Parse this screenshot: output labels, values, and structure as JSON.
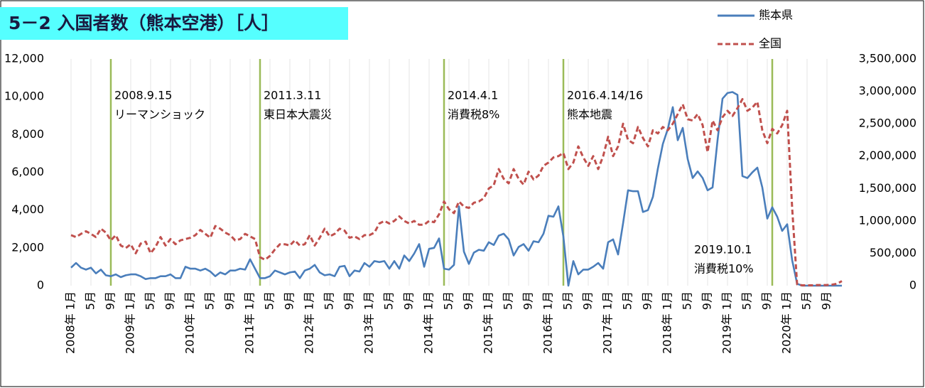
{
  "chart_data": {
    "type": "line",
    "title": "5－2 入国者数（熊本空港）［人］",
    "categories": [
      "2008年 1月",
      null,
      null,
      null,
      "5月",
      null,
      null,
      null,
      "9月",
      null,
      null,
      null,
      "2009年 1月",
      null,
      null,
      null,
      "5月",
      null,
      null,
      null,
      "9月",
      null,
      null,
      null,
      "2010年 1月",
      null,
      null,
      null,
      "5月",
      null,
      null,
      null,
      "9月",
      null,
      null,
      null,
      "2011年 1月",
      null,
      null,
      null,
      "5月",
      null,
      null,
      null,
      "9月",
      null,
      null,
      null,
      "2012年 1月",
      null,
      null,
      null,
      "5月",
      null,
      null,
      null,
      "9月",
      null,
      null,
      null,
      "2013年 1月",
      null,
      null,
      null,
      "5月",
      null,
      null,
      null,
      "9月",
      null,
      null,
      null,
      "2014年 1月",
      null,
      null,
      null,
      "5月",
      null,
      null,
      null,
      "9月",
      null,
      null,
      null,
      "2015年 1月",
      null,
      null,
      null,
      "5月",
      null,
      null,
      null,
      "9月",
      null,
      null,
      null,
      "2016年 1月",
      null,
      null,
      null,
      "5月",
      null,
      null,
      null,
      "9月",
      null,
      null,
      null,
      "2017年 1月",
      null,
      null,
      null,
      "5月",
      null,
      null,
      null,
      "9月",
      null,
      null,
      null,
      "2018年 1月",
      null,
      null,
      null,
      "5月",
      null,
      null,
      null,
      "9月",
      null,
      null,
      null,
      "2019年 1月",
      null,
      null,
      null,
      "5月",
      null,
      null,
      null,
      "9月",
      null,
      null,
      null,
      "2020年 1月",
      null,
      null,
      null,
      "5月",
      null,
      null,
      null,
      "9月",
      null,
      null,
      null
    ],
    "series": [
      {
        "name": "熊本県",
        "color": "#4a7ebb",
        "dashed": false,
        "values": [
          950,
          1200,
          950,
          850,
          950,
          650,
          850,
          550,
          500,
          600,
          450,
          550,
          600,
          600,
          500,
          350,
          400,
          400,
          500,
          500,
          600,
          400,
          400,
          1000,
          900,
          900,
          800,
          900,
          750,
          500,
          700,
          600,
          800,
          800,
          900,
          850,
          1400,
          900,
          400,
          400,
          500,
          800,
          700,
          600,
          700,
          750,
          400,
          800,
          900,
          1100,
          700,
          550,
          600,
          500,
          1000,
          1050,
          500,
          800,
          750,
          1200,
          1000,
          1300,
          1250,
          1300,
          900,
          1300,
          900,
          1600,
          1300,
          1700,
          2200,
          1000,
          1950,
          2000,
          2500,
          900,
          850,
          1100,
          4200,
          1800,
          1150,
          1750,
          1900,
          1850,
          2300,
          2150,
          2650,
          2750,
          2450,
          1600,
          2050,
          2200,
          1850,
          2350,
          2300,
          2750,
          3700,
          3650,
          4200,
          2600,
          0,
          1300,
          600,
          850,
          850,
          1000,
          1200,
          900,
          2300,
          2450,
          1650,
          3300,
          5050,
          5000,
          5000,
          3900,
          4000,
          4700,
          6200,
          7500,
          8300,
          9450,
          7700,
          8350,
          6700,
          5700,
          6050,
          5700,
          5050,
          5200,
          7700,
          9900,
          10200,
          10250,
          10100,
          5800,
          5700,
          6000,
          6250,
          5200,
          3550,
          4150,
          3650,
          2900,
          3250,
          1350,
          100,
          0,
          0,
          0,
          0,
          0,
          0,
          0,
          0,
          0
        ]
      },
      {
        "name": "全国",
        "color": "#c0504d",
        "dashed": true,
        "axis": "y2",
        "values": [
          780000,
          750000,
          800000,
          840000,
          800000,
          750000,
          880000,
          820000,
          700000,
          780000,
          620000,
          580000,
          640000,
          500000,
          650000,
          680000,
          500000,
          600000,
          750000,
          620000,
          720000,
          640000,
          700000,
          720000,
          740000,
          780000,
          860000,
          800000,
          740000,
          920000,
          880000,
          820000,
          780000,
          700000,
          720000,
          800000,
          760000,
          720000,
          440000,
          400000,
          460000,
          560000,
          640000,
          640000,
          620000,
          700000,
          620000,
          640000,
          780000,
          620000,
          740000,
          880000,
          760000,
          800000,
          880000,
          850000,
          740000,
          760000,
          720000,
          780000,
          780000,
          820000,
          960000,
          1000000,
          960000,
          1000000,
          1070000,
          1000000,
          960000,
          1000000,
          940000,
          940000,
          1000000,
          980000,
          1100000,
          1300000,
          1180000,
          1120000,
          1300000,
          1220000,
          1200000,
          1280000,
          1300000,
          1350000,
          1500000,
          1550000,
          1800000,
          1650000,
          1580000,
          1800000,
          1650000,
          1560000,
          1760000,
          1640000,
          1700000,
          1850000,
          1900000,
          1980000,
          2000000,
          2050000,
          1800000,
          1900000,
          2150000,
          1980000,
          1850000,
          2000000,
          1800000,
          2000000,
          2300000,
          2000000,
          2150000,
          2500000,
          2250000,
          2200000,
          2450000,
          2280000,
          2150000,
          2400000,
          2350000,
          2450000,
          2400000,
          2500000,
          2650000,
          2800000,
          2570000,
          2550000,
          2650000,
          2480000,
          2060000,
          2550000,
          2400000,
          2600000,
          2700000,
          2620000,
          2740000,
          2880000,
          2700000,
          2750000,
          2840000,
          2400000,
          2200000,
          2420000,
          2350000,
          2480000,
          2700000,
          1200000,
          20000,
          5000,
          5000,
          5000,
          10000,
          10000,
          10000,
          15000,
          30000,
          70000
        ]
      }
    ],
    "ylim": [
      0,
      12000
    ],
    "yticks": [
      0,
      {
        "value": 2000,
        "label": "2,000"
      },
      {
        "value": 4000,
        "label": "4,000"
      },
      {
        "value": 6000,
        "label": "6,000"
      },
      {
        "value": 8000,
        "label": "8,000"
      },
      {
        "value": 10000,
        "label": "10,000"
      },
      {
        "value": 12000,
        "label": "12,000"
      }
    ],
    "y2lim": [
      0,
      3500000
    ],
    "y2ticks": [
      0,
      {
        "value": 500000,
        "label": "500,000"
      },
      {
        "value": 1000000,
        "label": "1,000,000"
      },
      {
        "value": 1500000,
        "label": "1,500,000"
      },
      {
        "value": 2000000,
        "label": "2,000,000"
      },
      {
        "value": 2500000,
        "label": "2,500,000"
      },
      {
        "value": 3000000,
        "label": "3,000,000"
      },
      {
        "value": 3500000,
        "label": "3,500,000"
      }
    ],
    "event_color": "#9bbb59",
    "annotations": [
      {
        "date": "2008.9.15",
        "text": "リーマンショック"
      },
      {
        "date": "2011.3.11",
        "text": "東日本大震災"
      },
      {
        "date": "2014.4.1",
        "text": "消費税8%"
      },
      {
        "date": "2016.4.14/16",
        "text": "熊本地震"
      },
      {
        "date": "2019.10.1",
        "text": "消費税10%"
      }
    ]
  }
}
